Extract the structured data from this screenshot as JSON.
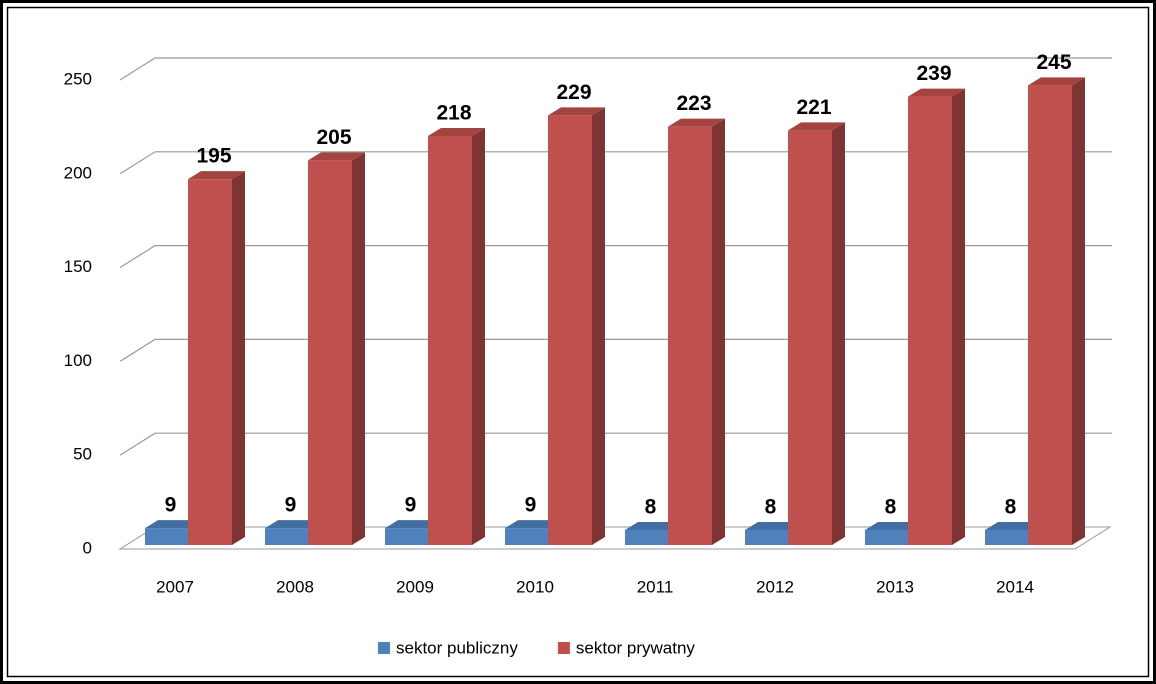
{
  "chart_data": {
    "type": "bar3d",
    "categories": [
      "2007",
      "2008",
      "2009",
      "2010",
      "2011",
      "2012",
      "2013",
      "2014"
    ],
    "series": [
      {
        "name": "sektor publiczny",
        "color": "#4f81bd",
        "values": [
          9,
          9,
          9,
          9,
          8,
          8,
          8,
          8
        ]
      },
      {
        "name": "sektor prywatny",
        "color": "#c0504d",
        "values": [
          195,
          205,
          218,
          229,
          223,
          221,
          239,
          245
        ]
      }
    ],
    "ylim": [
      0,
      250
    ],
    "yticks": [
      0,
      50,
      100,
      150,
      200,
      250
    ],
    "grid": true,
    "legend": "bottom"
  }
}
